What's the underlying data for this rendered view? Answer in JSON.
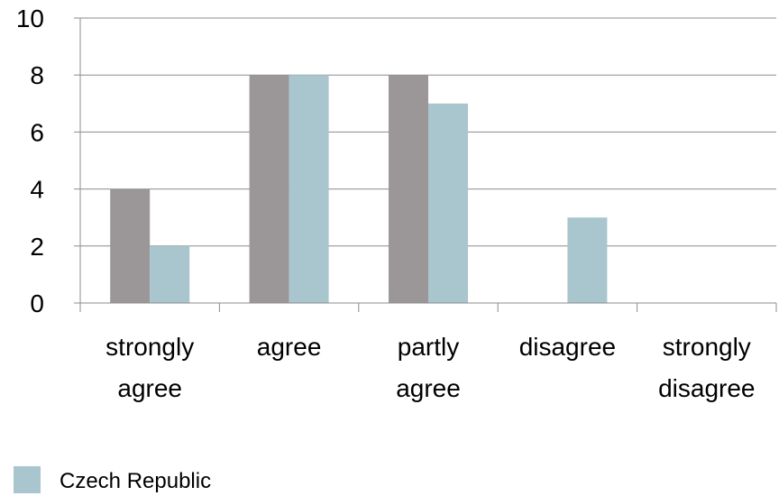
{
  "chart_data": {
    "type": "bar",
    "categories": [
      [
        "strongly",
        "agree"
      ],
      [
        "agree"
      ],
      [
        "partly",
        "agree"
      ],
      [
        "disagree"
      ],
      [
        "strongly",
        "disagree"
      ]
    ],
    "series": [
      {
        "name": "",
        "color": "#9B9799",
        "values": [
          4,
          8,
          8,
          0,
          0
        ]
      },
      {
        "name": "Czech Republic",
        "color": "#A9C5CD",
        "values": [
          2,
          8,
          7,
          3,
          0
        ]
      }
    ],
    "ylim": [
      0,
      10
    ],
    "yticks": [
      "0",
      "2",
      "4",
      "6",
      "8",
      "10"
    ],
    "grid": true,
    "legend_position": "bottom-left",
    "legend": [
      {
        "label": "Czech Republic",
        "color": "#A9C5CD"
      }
    ]
  }
}
